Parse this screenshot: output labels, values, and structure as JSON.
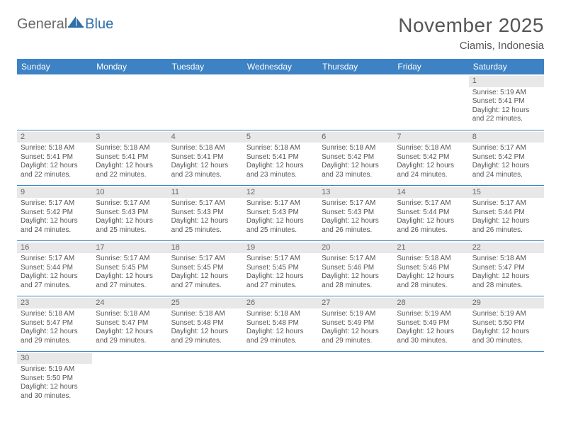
{
  "logo": {
    "text1": "General",
    "text2": "Blue",
    "brand_color": "#2f6fa8"
  },
  "title": "November 2025",
  "location": "Ciamis, Indonesia",
  "header_bg": "#3d82c4",
  "daybar_bg": "#e8e8e8",
  "weekdays": [
    "Sunday",
    "Monday",
    "Tuesday",
    "Wednesday",
    "Thursday",
    "Friday",
    "Saturday"
  ],
  "grid": [
    [
      null,
      null,
      null,
      null,
      null,
      null,
      {
        "n": "1",
        "sr": "Sunrise: 5:19 AM",
        "ss": "Sunset: 5:41 PM",
        "d1": "Daylight: 12 hours",
        "d2": "and 22 minutes."
      }
    ],
    [
      {
        "n": "2",
        "sr": "Sunrise: 5:18 AM",
        "ss": "Sunset: 5:41 PM",
        "d1": "Daylight: 12 hours",
        "d2": "and 22 minutes."
      },
      {
        "n": "3",
        "sr": "Sunrise: 5:18 AM",
        "ss": "Sunset: 5:41 PM",
        "d1": "Daylight: 12 hours",
        "d2": "and 22 minutes."
      },
      {
        "n": "4",
        "sr": "Sunrise: 5:18 AM",
        "ss": "Sunset: 5:41 PM",
        "d1": "Daylight: 12 hours",
        "d2": "and 23 minutes."
      },
      {
        "n": "5",
        "sr": "Sunrise: 5:18 AM",
        "ss": "Sunset: 5:41 PM",
        "d1": "Daylight: 12 hours",
        "d2": "and 23 minutes."
      },
      {
        "n": "6",
        "sr": "Sunrise: 5:18 AM",
        "ss": "Sunset: 5:42 PM",
        "d1": "Daylight: 12 hours",
        "d2": "and 23 minutes."
      },
      {
        "n": "7",
        "sr": "Sunrise: 5:18 AM",
        "ss": "Sunset: 5:42 PM",
        "d1": "Daylight: 12 hours",
        "d2": "and 24 minutes."
      },
      {
        "n": "8",
        "sr": "Sunrise: 5:17 AM",
        "ss": "Sunset: 5:42 PM",
        "d1": "Daylight: 12 hours",
        "d2": "and 24 minutes."
      }
    ],
    [
      {
        "n": "9",
        "sr": "Sunrise: 5:17 AM",
        "ss": "Sunset: 5:42 PM",
        "d1": "Daylight: 12 hours",
        "d2": "and 24 minutes."
      },
      {
        "n": "10",
        "sr": "Sunrise: 5:17 AM",
        "ss": "Sunset: 5:43 PM",
        "d1": "Daylight: 12 hours",
        "d2": "and 25 minutes."
      },
      {
        "n": "11",
        "sr": "Sunrise: 5:17 AM",
        "ss": "Sunset: 5:43 PM",
        "d1": "Daylight: 12 hours",
        "d2": "and 25 minutes."
      },
      {
        "n": "12",
        "sr": "Sunrise: 5:17 AM",
        "ss": "Sunset: 5:43 PM",
        "d1": "Daylight: 12 hours",
        "d2": "and 25 minutes."
      },
      {
        "n": "13",
        "sr": "Sunrise: 5:17 AM",
        "ss": "Sunset: 5:43 PM",
        "d1": "Daylight: 12 hours",
        "d2": "and 26 minutes."
      },
      {
        "n": "14",
        "sr": "Sunrise: 5:17 AM",
        "ss": "Sunset: 5:44 PM",
        "d1": "Daylight: 12 hours",
        "d2": "and 26 minutes."
      },
      {
        "n": "15",
        "sr": "Sunrise: 5:17 AM",
        "ss": "Sunset: 5:44 PM",
        "d1": "Daylight: 12 hours",
        "d2": "and 26 minutes."
      }
    ],
    [
      {
        "n": "16",
        "sr": "Sunrise: 5:17 AM",
        "ss": "Sunset: 5:44 PM",
        "d1": "Daylight: 12 hours",
        "d2": "and 27 minutes."
      },
      {
        "n": "17",
        "sr": "Sunrise: 5:17 AM",
        "ss": "Sunset: 5:45 PM",
        "d1": "Daylight: 12 hours",
        "d2": "and 27 minutes."
      },
      {
        "n": "18",
        "sr": "Sunrise: 5:17 AM",
        "ss": "Sunset: 5:45 PM",
        "d1": "Daylight: 12 hours",
        "d2": "and 27 minutes."
      },
      {
        "n": "19",
        "sr": "Sunrise: 5:17 AM",
        "ss": "Sunset: 5:45 PM",
        "d1": "Daylight: 12 hours",
        "d2": "and 27 minutes."
      },
      {
        "n": "20",
        "sr": "Sunrise: 5:17 AM",
        "ss": "Sunset: 5:46 PM",
        "d1": "Daylight: 12 hours",
        "d2": "and 28 minutes."
      },
      {
        "n": "21",
        "sr": "Sunrise: 5:18 AM",
        "ss": "Sunset: 5:46 PM",
        "d1": "Daylight: 12 hours",
        "d2": "and 28 minutes."
      },
      {
        "n": "22",
        "sr": "Sunrise: 5:18 AM",
        "ss": "Sunset: 5:47 PM",
        "d1": "Daylight: 12 hours",
        "d2": "and 28 minutes."
      }
    ],
    [
      {
        "n": "23",
        "sr": "Sunrise: 5:18 AM",
        "ss": "Sunset: 5:47 PM",
        "d1": "Daylight: 12 hours",
        "d2": "and 29 minutes."
      },
      {
        "n": "24",
        "sr": "Sunrise: 5:18 AM",
        "ss": "Sunset: 5:47 PM",
        "d1": "Daylight: 12 hours",
        "d2": "and 29 minutes."
      },
      {
        "n": "25",
        "sr": "Sunrise: 5:18 AM",
        "ss": "Sunset: 5:48 PM",
        "d1": "Daylight: 12 hours",
        "d2": "and 29 minutes."
      },
      {
        "n": "26",
        "sr": "Sunrise: 5:18 AM",
        "ss": "Sunset: 5:48 PM",
        "d1": "Daylight: 12 hours",
        "d2": "and 29 minutes."
      },
      {
        "n": "27",
        "sr": "Sunrise: 5:19 AM",
        "ss": "Sunset: 5:49 PM",
        "d1": "Daylight: 12 hours",
        "d2": "and 29 minutes."
      },
      {
        "n": "28",
        "sr": "Sunrise: 5:19 AM",
        "ss": "Sunset: 5:49 PM",
        "d1": "Daylight: 12 hours",
        "d2": "and 30 minutes."
      },
      {
        "n": "29",
        "sr": "Sunrise: 5:19 AM",
        "ss": "Sunset: 5:50 PM",
        "d1": "Daylight: 12 hours",
        "d2": "and 30 minutes."
      }
    ],
    [
      {
        "n": "30",
        "sr": "Sunrise: 5:19 AM",
        "ss": "Sunset: 5:50 PM",
        "d1": "Daylight: 12 hours",
        "d2": "and 30 minutes."
      },
      null,
      null,
      null,
      null,
      null,
      null
    ]
  ]
}
